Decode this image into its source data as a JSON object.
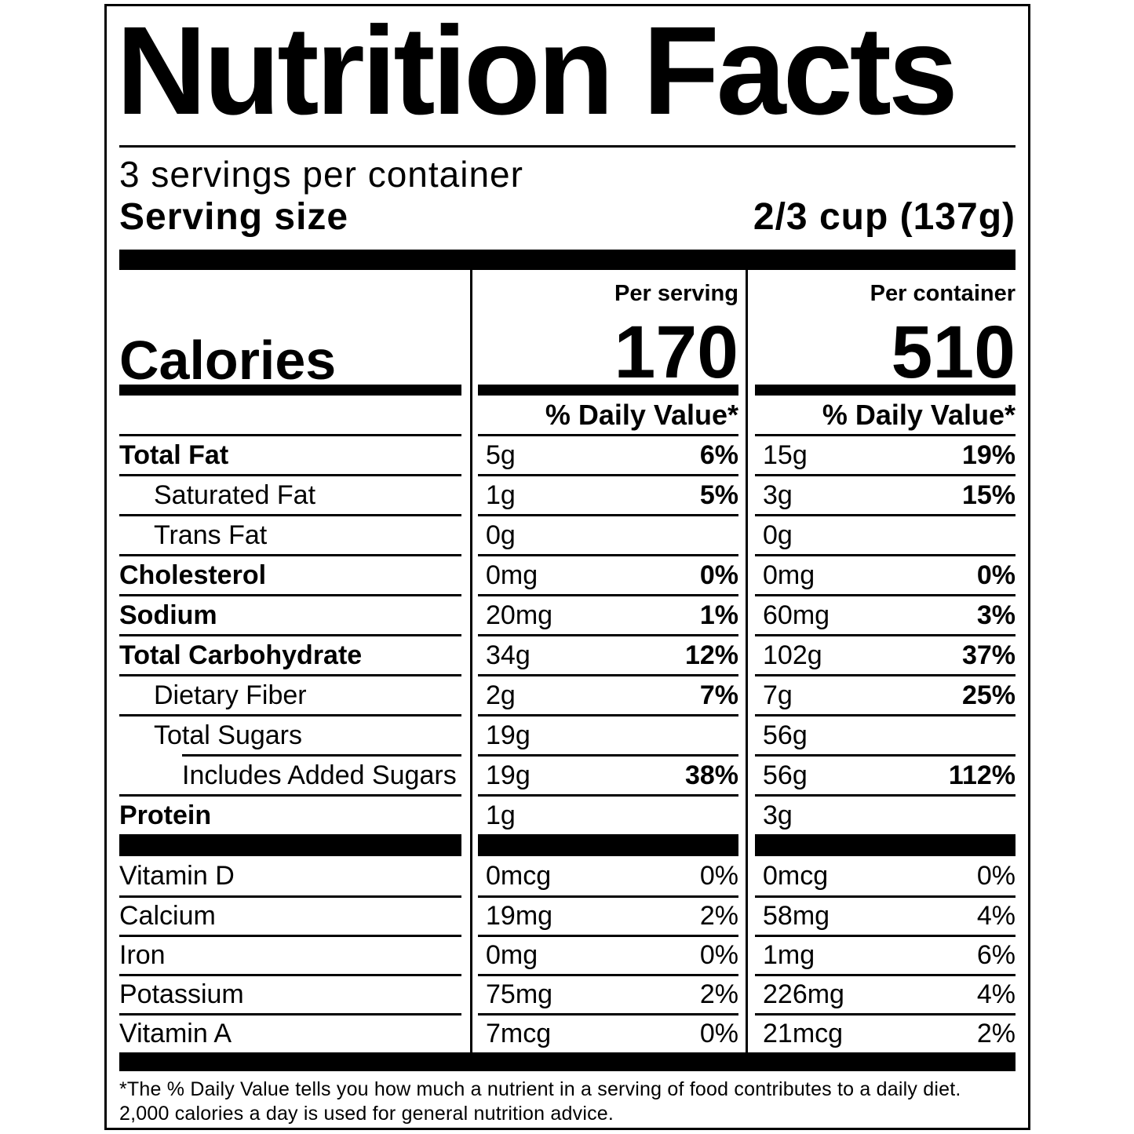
{
  "title": "Nutrition Facts",
  "servings_per_container": "3 servings per container",
  "serving_size": {
    "label": "Serving size",
    "value": "2/3 cup (137g)"
  },
  "calories": {
    "label": "Calories",
    "per_serving": {
      "header": "Per serving",
      "value": "170"
    },
    "per_container": {
      "header": "Per container",
      "value": "510"
    },
    "daily_value_header": "% Daily Value*"
  },
  "nutrients": [
    {
      "label": "Total Fat",
      "serving_amount": "5g",
      "serving_dv": "6%",
      "container_amount": "15g",
      "container_dv": "19%"
    },
    {
      "label": "Saturated Fat",
      "serving_amount": "1g",
      "serving_dv": "5%",
      "container_amount": "3g",
      "container_dv": "15%"
    },
    {
      "label": "Trans Fat",
      "serving_amount": "0g",
      "serving_dv": "",
      "container_amount": "0g",
      "container_dv": ""
    },
    {
      "label": "Cholesterol",
      "serving_amount": "0mg",
      "serving_dv": "0%",
      "container_amount": "0mg",
      "container_dv": "0%"
    },
    {
      "label": "Sodium",
      "serving_amount": "20mg",
      "serving_dv": "1%",
      "container_amount": "60mg",
      "container_dv": "3%"
    },
    {
      "label": "Total Carbohydrate",
      "serving_amount": "34g",
      "serving_dv": "12%",
      "container_amount": "102g",
      "container_dv": "37%"
    },
    {
      "label": "Dietary Fiber",
      "serving_amount": "2g",
      "serving_dv": "7%",
      "container_amount": "7g",
      "container_dv": "25%"
    },
    {
      "label": "Total Sugars",
      "serving_amount": "19g",
      "serving_dv": "",
      "container_amount": "56g",
      "container_dv": ""
    },
    {
      "label": "Includes Added Sugars",
      "serving_amount": "19g",
      "serving_dv": "38%",
      "container_amount": "56g",
      "container_dv": "112%"
    },
    {
      "label": "Protein",
      "serving_amount": "1g",
      "serving_dv": "",
      "container_amount": "3g",
      "container_dv": ""
    }
  ],
  "vitamins": [
    {
      "label": "Vitamin D",
      "serving_amount": "0mcg",
      "serving_dv": "0%",
      "container_amount": "0mcg",
      "container_dv": "0%"
    },
    {
      "label": "Calcium",
      "serving_amount": "19mg",
      "serving_dv": "2%",
      "container_amount": "58mg",
      "container_dv": "4%"
    },
    {
      "label": "Iron",
      "serving_amount": "0mg",
      "serving_dv": "0%",
      "container_amount": "1mg",
      "container_dv": "6%"
    },
    {
      "label": "Potassium",
      "serving_amount": "75mg",
      "serving_dv": "2%",
      "container_amount": "226mg",
      "container_dv": "4%"
    },
    {
      "label": "Vitamin A",
      "serving_amount": "7mcg",
      "serving_dv": "0%",
      "container_amount": "21mcg",
      "container_dv": "2%"
    }
  ],
  "footnote": {
    "line1": "*The % Daily Value tells you how much a nutrient in a serving of food contributes to a daily diet.",
    "line2": "2,000 calories a day is used for general nutrition advice."
  }
}
